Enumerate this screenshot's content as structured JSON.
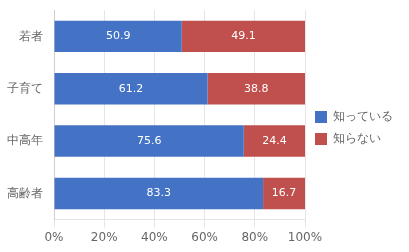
{
  "chart_data": {
    "type": "bar",
    "orientation": "horizontal",
    "stacked": true,
    "categories": [
      "若者",
      "子育て",
      "中高年",
      "高齢者"
    ],
    "series": [
      {
        "name": "知っている",
        "color": "#4472C4",
        "values": [
          50.9,
          61.2,
          75.6,
          83.3
        ]
      },
      {
        "name": "知らない",
        "color": "#C0504D",
        "values": [
          49.1,
          38.8,
          24.4,
          16.7
        ]
      }
    ],
    "xlim": [
      0,
      100
    ],
    "xticks": [
      {
        "value": 0,
        "label": "0%"
      },
      {
        "value": 20,
        "label": "20%"
      },
      {
        "value": 40,
        "label": "40%"
      },
      {
        "value": 60,
        "label": "60%"
      },
      {
        "value": 80,
        "label": "80%"
      },
      {
        "value": 100,
        "label": "100%"
      }
    ],
    "grid": true,
    "legend": "right",
    "data_labels": true
  }
}
